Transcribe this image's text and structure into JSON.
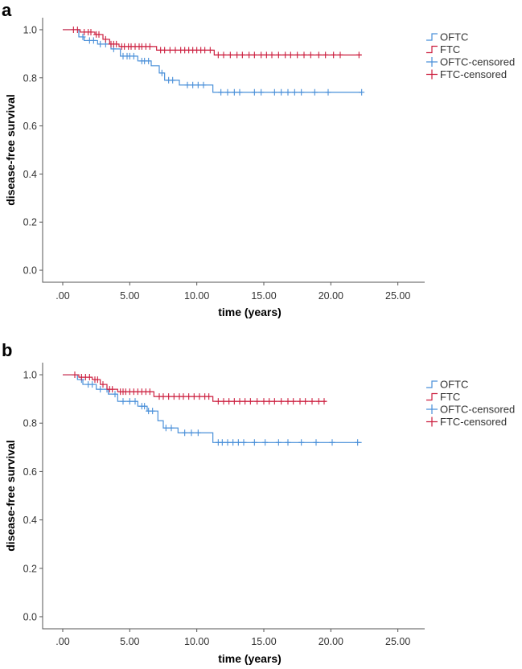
{
  "chart_data": [
    {
      "type": "line",
      "panel": "a",
      "xlabel": "time (years)",
      "ylabel": "disease-free survival",
      "xlim": [
        -1.5,
        27
      ],
      "ylim": [
        -0.05,
        1.05
      ],
      "xticks": [
        ".00",
        "5.00",
        "10.00",
        "15.00",
        "20.00",
        "25.00"
      ],
      "xtick_values": [
        0,
        5,
        10,
        15,
        20,
        25
      ],
      "yticks": [
        "0.0",
        "0.2",
        "0.4",
        "0.6",
        "0.8",
        "1.0"
      ],
      "ytick_values": [
        0,
        0.2,
        0.4,
        0.6,
        0.8,
        1.0
      ],
      "legend": [
        "OFTC",
        "FTC",
        "OFTC-censored",
        "FTC-censored"
      ],
      "colors": {
        "OFTC": "#4a90d9",
        "FTC": "#cc1f3f"
      },
      "series": [
        {
          "name": "OFTC",
          "steps": [
            [
              0,
              1.0
            ],
            [
              1.2,
              0.97
            ],
            [
              1.6,
              0.955
            ],
            [
              2.6,
              0.94
            ],
            [
              3.6,
              0.92
            ],
            [
              4.3,
              0.89
            ],
            [
              5.6,
              0.87
            ],
            [
              6.6,
              0.85
            ],
            [
              7.2,
              0.82
            ],
            [
              7.6,
              0.79
            ],
            [
              8.7,
              0.77
            ],
            [
              11.2,
              0.74
            ],
            [
              22.3,
              0.74
            ]
          ],
          "censored": [
            1.5,
            2.0,
            2.3,
            2.8,
            3.2,
            3.8,
            4.5,
            4.8,
            5.0,
            5.3,
            5.9,
            6.1,
            6.4,
            7.4,
            7.9,
            8.2,
            9.3,
            9.7,
            10.1,
            10.5,
            11.8,
            12.3,
            12.8,
            13.2,
            14.3,
            14.8,
            15.8,
            16.3,
            16.8,
            17.3,
            17.8,
            18.8,
            19.8,
            22.3
          ]
        },
        {
          "name": "FTC",
          "steps": [
            [
              0,
              1.0
            ],
            [
              1.3,
              0.99
            ],
            [
              2.4,
              0.98
            ],
            [
              3.0,
              0.96
            ],
            [
              3.5,
              0.94
            ],
            [
              4.2,
              0.93
            ],
            [
              7.0,
              0.915
            ],
            [
              11.3,
              0.895
            ],
            [
              22.3,
              0.895
            ]
          ],
          "censored": [
            0.8,
            1.1,
            1.6,
            1.9,
            2.1,
            2.5,
            2.7,
            3.2,
            3.6,
            3.8,
            4.0,
            4.4,
            4.6,
            4.9,
            5.1,
            5.4,
            5.7,
            5.9,
            6.2,
            6.5,
            7.3,
            7.6,
            8.0,
            8.4,
            8.8,
            9.1,
            9.4,
            9.7,
            10.0,
            10.3,
            10.6,
            11.0,
            11.6,
            12.0,
            12.5,
            13.0,
            13.4,
            13.9,
            14.3,
            14.8,
            15.2,
            15.6,
            16.1,
            16.6,
            17.0,
            17.5,
            18.0,
            18.5,
            19.1,
            19.6,
            20.2,
            20.7,
            22.1
          ]
        }
      ]
    },
    {
      "type": "line",
      "panel": "b",
      "xlabel": "time (years)",
      "ylabel": "disease-free survival",
      "xlim": [
        -1.5,
        27
      ],
      "ylim": [
        -0.05,
        1.05
      ],
      "xticks": [
        ".00",
        "5.00",
        "10.00",
        "15.00",
        "20.00",
        "25.00"
      ],
      "xtick_values": [
        0,
        5,
        10,
        15,
        20,
        25
      ],
      "yticks": [
        "0.0",
        "0.2",
        "0.4",
        "0.6",
        "0.8",
        "1.0"
      ],
      "ytick_values": [
        0,
        0.2,
        0.4,
        0.6,
        0.8,
        1.0
      ],
      "legend": [
        "OFTC",
        "FTC",
        "OFTC-censored",
        "FTC-censored"
      ],
      "colors": {
        "OFTC": "#4a90d9",
        "FTC": "#cc1f3f"
      },
      "series": [
        {
          "name": "OFTC",
          "steps": [
            [
              0,
              1.0
            ],
            [
              1.1,
              0.98
            ],
            [
              1.5,
              0.96
            ],
            [
              2.5,
              0.94
            ],
            [
              3.4,
              0.92
            ],
            [
              4.1,
              0.89
            ],
            [
              5.6,
              0.87
            ],
            [
              6.3,
              0.85
            ],
            [
              7.1,
              0.81
            ],
            [
              7.5,
              0.78
            ],
            [
              8.6,
              0.76
            ],
            [
              11.2,
              0.72
            ],
            [
              22.3,
              0.72
            ]
          ],
          "censored": [
            1.4,
            1.9,
            2.2,
            2.8,
            3.3,
            3.9,
            4.5,
            5.0,
            5.4,
            5.9,
            6.1,
            6.4,
            6.7,
            7.7,
            8.1,
            9.1,
            9.6,
            10.1,
            11.6,
            11.9,
            12.3,
            12.7,
            13.1,
            13.5,
            14.3,
            15.1,
            16.1,
            16.8,
            17.8,
            18.9,
            20.1,
            22.0
          ]
        },
        {
          "name": "FTC",
          "steps": [
            [
              0,
              1.0
            ],
            [
              1.2,
              0.99
            ],
            [
              2.2,
              0.98
            ],
            [
              2.8,
              0.96
            ],
            [
              3.3,
              0.94
            ],
            [
              4.1,
              0.93
            ],
            [
              6.8,
              0.91
            ],
            [
              11.2,
              0.89
            ],
            [
              19.7,
              0.89
            ]
          ],
          "censored": [
            0.9,
            1.4,
            1.7,
            2.0,
            2.4,
            2.6,
            3.0,
            3.5,
            3.7,
            4.3,
            4.5,
            4.7,
            5.0,
            5.3,
            5.6,
            5.9,
            6.2,
            6.5,
            7.2,
            7.5,
            7.9,
            8.3,
            8.7,
            9.0,
            9.4,
            9.8,
            10.2,
            10.6,
            10.9,
            11.6,
            12.0,
            12.4,
            12.8,
            13.2,
            13.6,
            14.0,
            14.5,
            15.0,
            15.4,
            15.8,
            16.3,
            16.8,
            17.2,
            17.7,
            18.1,
            18.6,
            19.1,
            19.5
          ]
        }
      ]
    }
  ]
}
